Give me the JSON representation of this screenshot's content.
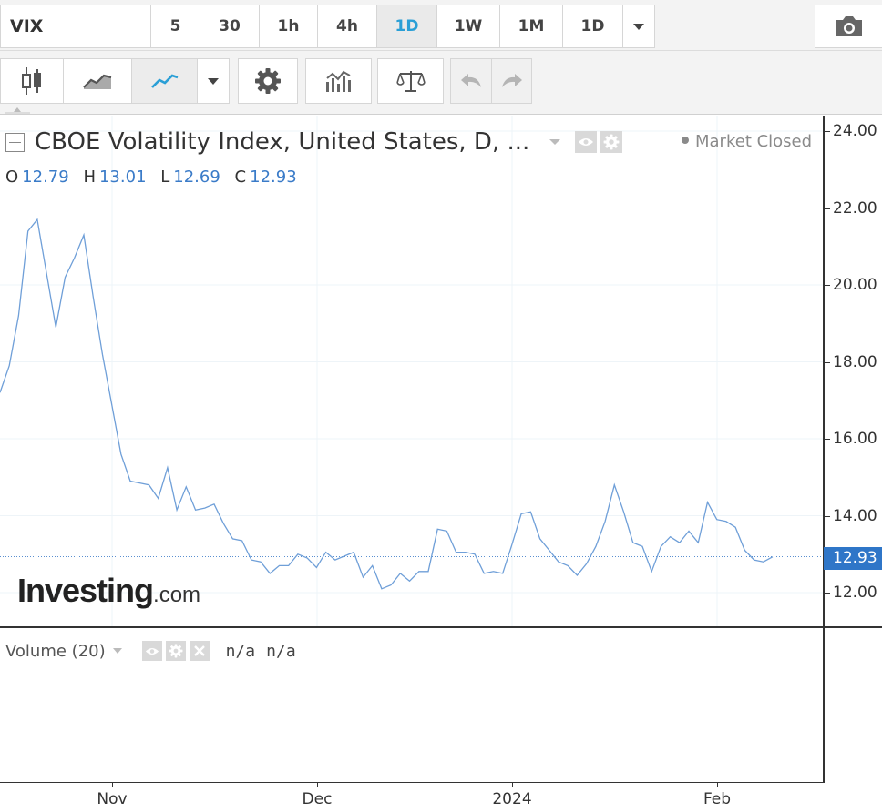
{
  "toolbar": {
    "symbol": "VIX",
    "intervals": [
      {
        "label": "5",
        "active": false
      },
      {
        "label": "30",
        "active": false
      },
      {
        "label": "1h",
        "active": false
      },
      {
        "label": "4h",
        "active": false
      },
      {
        "label": "1D",
        "active": true
      },
      {
        "label": "1W",
        "active": false
      },
      {
        "label": "1M",
        "active": false
      },
      {
        "label": "1D",
        "active": false
      }
    ],
    "icons": [
      "candlestick-icon",
      "area-chart-icon",
      "line-chart-icon",
      "chevron-down-icon",
      "gear-icon",
      "indicators-icon",
      "compare-scale-icon",
      "undo-icon",
      "redo-icon",
      "camera-icon"
    ]
  },
  "legend": {
    "title": "CBOE Volatility Index, United States, D, ...",
    "status": "Market Closed",
    "ohlc": [
      {
        "key": "O",
        "value": "12.79"
      },
      {
        "key": "H",
        "value": "13.01"
      },
      {
        "key": "L",
        "value": "12.69"
      },
      {
        "key": "C",
        "value": "12.93"
      }
    ]
  },
  "price_axis": {
    "labels": [
      "24.00",
      "22.00",
      "20.00",
      "18.00",
      "16.00",
      "14.00",
      "12.00"
    ],
    "last_price": "12.93"
  },
  "time_axis": {
    "labels": [
      "Nov",
      "Dec",
      "2024",
      "Feb"
    ]
  },
  "watermark": {
    "brand": "Investing",
    "suffix": ".com"
  },
  "volume": {
    "label": "Volume (20)",
    "value1": "n/a",
    "value2": "n/a"
  },
  "colors": {
    "line": "#6f9fd8",
    "accent": "#2a9fd6",
    "price_tag": "#2f76c8",
    "ohlc_values": "#3a7bc8"
  },
  "chart_data": {
    "type": "line",
    "y_axis_range": [
      11.2,
      24.4
    ],
    "x_ticks": [
      "Nov",
      "Dec",
      "2024",
      "Feb"
    ],
    "series": [
      {
        "values": [
          17.2,
          17.9,
          19.2,
          21.4,
          21.7,
          20.3,
          18.9,
          20.2,
          20.7,
          21.3,
          19.7,
          18.2,
          16.9,
          15.6,
          14.9,
          14.85,
          14.8,
          14.45,
          15.25,
          14.15,
          14.75,
          14.15,
          14.2,
          14.3,
          13.8,
          13.4,
          13.35,
          12.85,
          12.8,
          12.5,
          12.7,
          12.7,
          13.0,
          12.9,
          12.65,
          13.05,
          12.85,
          12.95,
          13.05,
          12.4,
          12.7,
          12.1,
          12.2,
          12.5,
          12.3,
          12.55,
          12.55,
          13.65,
          13.6,
          13.05,
          13.05,
          13.0,
          12.5,
          12.55,
          12.5,
          13.25,
          14.05,
          14.1,
          13.4,
          13.1,
          12.8,
          12.7,
          12.45,
          12.75,
          13.2,
          13.85,
          14.8,
          14.1,
          13.3,
          13.2,
          12.55,
          13.2,
          13.45,
          13.3,
          13.6,
          13.3,
          14.35,
          13.9,
          13.85,
          13.7,
          13.1,
          12.85,
          12.8,
          12.93
        ]
      }
    ]
  }
}
